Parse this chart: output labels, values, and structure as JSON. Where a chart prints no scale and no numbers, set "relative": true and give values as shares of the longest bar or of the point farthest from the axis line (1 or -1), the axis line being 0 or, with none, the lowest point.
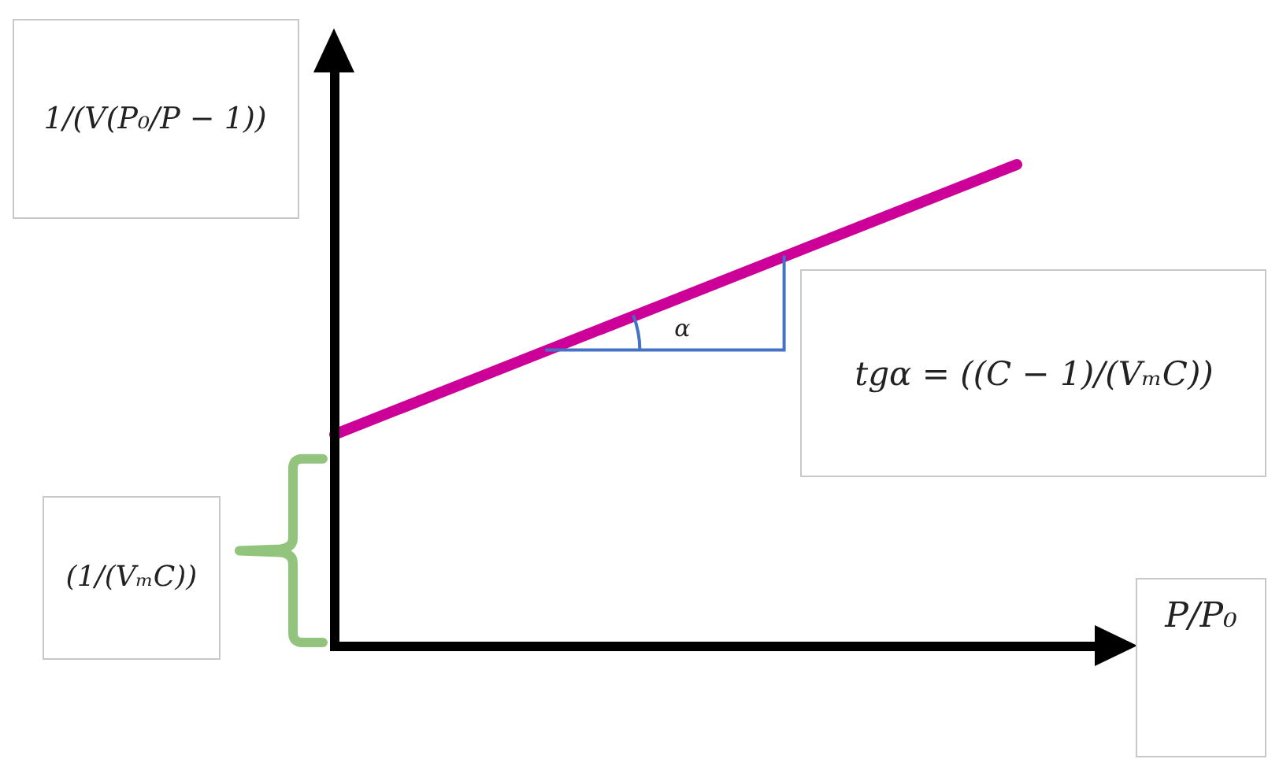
{
  "chart_data": {
    "type": "line",
    "relative": true,
    "categories": [
      null,
      null
    ],
    "series": [
      {
        "color": "#cc0099",
        "values": [
          0.44,
          1
        ]
      }
    ],
    "xlabel": "P/P₀",
    "ylabel": "1/(V(P₀/P − 1))",
    "annotations": [
      "tgα = ((C − 1)/(VₘC))",
      "(1/(VₘC))",
      "α"
    ]
  }
}
